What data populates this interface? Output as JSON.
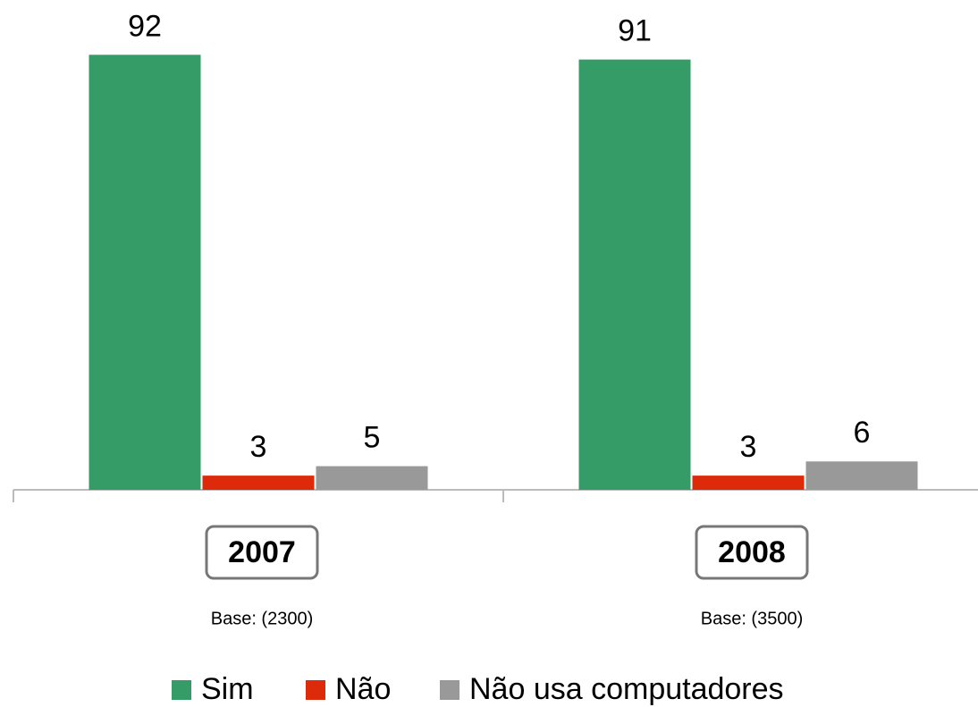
{
  "chart_data": {
    "type": "bar",
    "categories": [
      "2007",
      "2008"
    ],
    "category_notes": [
      "Base: (2300)",
      "Base: (3500)"
    ],
    "series": [
      {
        "name": "Sim",
        "color": "#359b67",
        "values": [
          92,
          91
        ]
      },
      {
        "name": "Não",
        "color": "#dd2a0a",
        "values": [
          3,
          3
        ]
      },
      {
        "name": "Não usa computadores",
        "color": "#999999",
        "values": [
          5,
          6
        ]
      }
    ],
    "ylim": [
      0,
      100
    ],
    "legend": "bottom"
  }
}
